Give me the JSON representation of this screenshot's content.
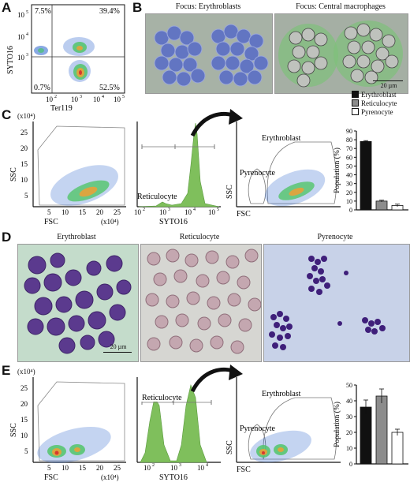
{
  "panels": {
    "A": {
      "letter": "A",
      "q_tl": "7.5%",
      "q_tr": "39.4%",
      "q_bl": "0.7%",
      "q_br": "52.5%",
      "xlabel": "Ter119",
      "ylabel": "SYTO16",
      "xticks": [
        "10",
        "10",
        "10",
        "10"
      ],
      "xexp": [
        "2",
        "3",
        "4",
        "5"
      ],
      "yticks": [
        "10",
        "10",
        "10"
      ],
      "yexp": [
        "5",
        "4",
        "3"
      ]
    },
    "B": {
      "letter": "B",
      "title_left": "Focus: Erythroblasts",
      "title_right": "Focus: Central macrophages",
      "scalebar": "20 µm"
    },
    "C": {
      "letter": "C",
      "yunit": "(x10⁴)",
      "ssc": "SSC",
      "fsc": "FSC",
      "fsc_unit": "(x10⁴)",
      "yticks": [
        "25",
        "20",
        "15",
        "10",
        "5"
      ],
      "xticks": [
        "5",
        "10",
        "15",
        "20",
        "25"
      ],
      "hist_label": "Reticulocyte",
      "hist_xlabel": "SYTO16",
      "gate_ery": "Erythroblast",
      "gate_pyr": "Pyrenocyte"
    },
    "D": {
      "letter": "D",
      "cap1": "Erythroblast",
      "cap2": "Reticulocyte",
      "cap3": "Pyrenocyte",
      "scalebar": "20 µm"
    },
    "E": {
      "letter": "E",
      "yunit": "(x10⁴)",
      "ssc": "SSC",
      "fsc": "FSC",
      "fsc_unit": "(x10⁴)",
      "yticks": [
        "25",
        "20",
        "15",
        "10",
        "5"
      ],
      "xticks": [
        "5",
        "10",
        "15",
        "20",
        "25"
      ],
      "hist_label": "Reticulocyte",
      "hist_xlabel": "SYTO16",
      "gate_ery": "Erythroblast",
      "gate_pyr": "Pyrenocyte",
      "hist_xticks": [
        "10",
        "10",
        "10"
      ],
      "hist_xexp": [
        "2",
        "3",
        "4"
      ]
    }
  },
  "legend": [
    "Erythroblast",
    "Reticulocyte",
    "Pyrenocyte"
  ],
  "colors": {
    "erythroblast": "#111111",
    "reticulocyte": "#8c8c8c",
    "pyrenocyte": "#ffffff",
    "histogram": "#7fbf5c"
  },
  "chart_data": [
    {
      "type": "bar",
      "panel": "C",
      "categories": [
        "Erythroblast",
        "Reticulocyte",
        "Pyrenocyte"
      ],
      "values": [
        78,
        10,
        5
      ],
      "errors": [
        1,
        1,
        1.5
      ],
      "ylabel": "Population (%)",
      "ylim": [
        0,
        90
      ],
      "yticks": [
        0,
        10,
        20,
        30,
        40,
        50,
        60,
        70,
        80,
        90
      ]
    },
    {
      "type": "bar",
      "panel": "E",
      "categories": [
        "Erythroblast",
        "Reticulocyte",
        "Pyrenocyte"
      ],
      "values": [
        36,
        43,
        20
      ],
      "errors": [
        4.5,
        4.5,
        2
      ],
      "ylabel": "Population (%)",
      "ylim": [
        0,
        50
      ],
      "yticks": [
        0,
        10,
        20,
        30,
        40,
        50
      ]
    }
  ]
}
